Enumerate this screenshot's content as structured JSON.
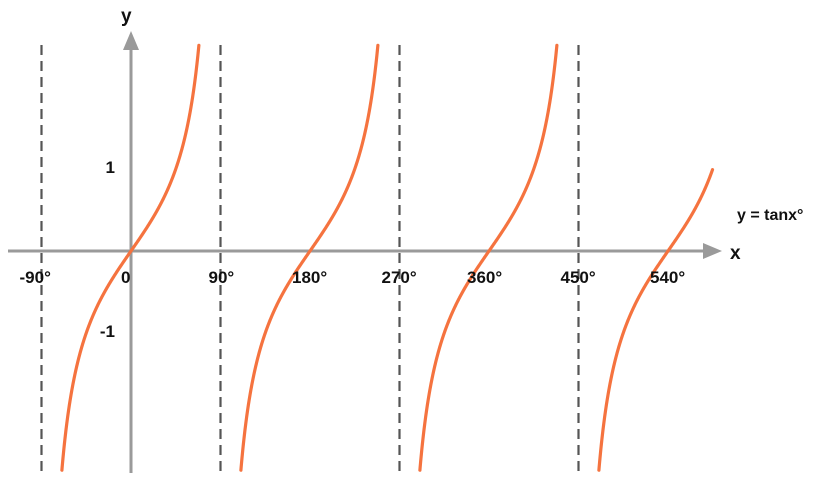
{
  "chart_data": {
    "type": "line",
    "function": "tan",
    "x_unit": "degrees",
    "x_range": [
      -90,
      585
    ],
    "y_range": [
      -3.5,
      3.5
    ],
    "series": [
      {
        "name": "y = tanx°",
        "domain": [
          -90,
          90
        ]
      },
      {
        "name": "y = tanx°",
        "domain": [
          90,
          270
        ]
      },
      {
        "name": "y = tanx°",
        "domain": [
          270,
          450
        ]
      },
      {
        "name": "y = tanx°",
        "domain": [
          450,
          585
        ]
      }
    ],
    "asymptotes": [
      -90,
      90,
      270,
      450
    ],
    "x_ticks": [
      {
        "value": -90,
        "label": "-90°"
      },
      {
        "value": 0,
        "label": "0"
      },
      {
        "value": 90,
        "label": "90°"
      },
      {
        "value": 180,
        "label": "180°"
      },
      {
        "value": 270,
        "label": "270°"
      },
      {
        "value": 360,
        "label": "360°"
      },
      {
        "value": 450,
        "label": "450°"
      },
      {
        "value": 540,
        "label": "540°"
      }
    ],
    "y_ticks": [
      {
        "value": 1,
        "label": "1"
      },
      {
        "value": -1,
        "label": "-1"
      }
    ],
    "xlabel": "x",
    "ylabel": "y",
    "curve_label": "y = tanx°",
    "grid": false
  },
  "colors": {
    "curve": "#F5733F",
    "axis": "#9A9A9A",
    "asymptote": "#555555",
    "text": "#111111"
  }
}
